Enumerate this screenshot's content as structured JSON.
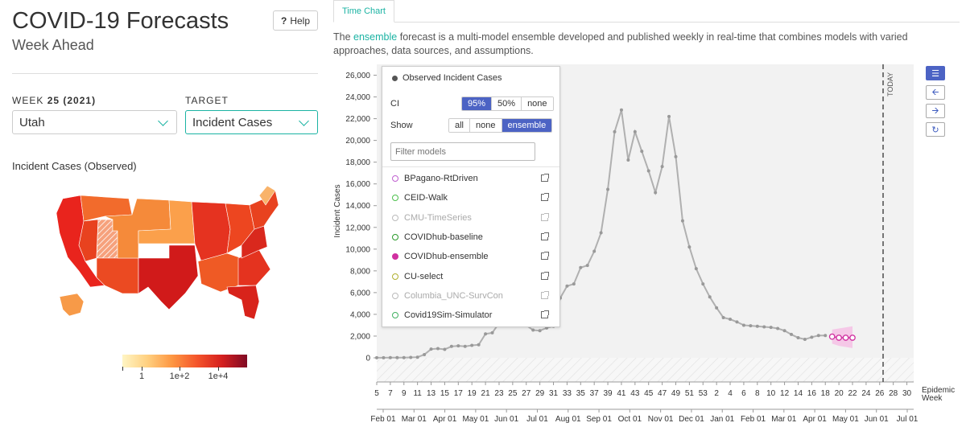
{
  "header": {
    "title": "COVID-19 Forecasts",
    "subtitle": "Week Ahead",
    "help_label": "Help",
    "help_icon_glyph": "?"
  },
  "selectors": {
    "week_label_prefix": "WEEK",
    "week_value": "25",
    "week_year": "(2021)",
    "region_value": "Utah",
    "target_label": "TARGET",
    "target_value": "Incident Cases"
  },
  "map": {
    "title": "Incident Cases (Observed)",
    "colorbar_labels": [
      "1",
      "1e+2",
      "1e+4"
    ],
    "colorbar_colors": [
      "#fff5c4",
      "#ffd080",
      "#fd9642",
      "#f4542b",
      "#d41f1f",
      "#7f0a24"
    ]
  },
  "tabs": [
    {
      "label": "Time Chart",
      "active": true
    }
  ],
  "description": {
    "prefix": "The",
    "link": "ensemble",
    "rest": "forecast is a multi-model ensemble developed and published weekly in real-time that combines models with varied approaches, data sources, and assumptions."
  },
  "legend": {
    "observed_label": "Observed Incident Cases",
    "ci_label": "CI",
    "ci_options": [
      "95%",
      "50%",
      "none"
    ],
    "ci_selected": "95%",
    "show_label": "Show",
    "show_options": [
      "all",
      "none",
      "ensemble"
    ],
    "show_selected": "ensemble",
    "filter_placeholder": "Filter models",
    "models": [
      {
        "name": "BPagano-RtDriven",
        "color": "#c060d0",
        "filled": false,
        "dim": false
      },
      {
        "name": "CEID-Walk",
        "color": "#4cc04c",
        "filled": false,
        "dim": false
      },
      {
        "name": "CMU-TimeSeries",
        "color": "#bbbbbb",
        "filled": false,
        "dim": true
      },
      {
        "name": "COVIDhub-baseline",
        "color": "#2a9a2a",
        "filled": false,
        "dim": false
      },
      {
        "name": "COVIDhub-ensemble",
        "color": "#d030a0",
        "filled": true,
        "dim": false
      },
      {
        "name": "CU-select",
        "color": "#b0b030",
        "filled": false,
        "dim": false
      },
      {
        "name": "Columbia_UNC-SurvCon",
        "color": "#bbbbbb",
        "filled": false,
        "dim": true
      },
      {
        "name": "Covid19Sim-Simulator",
        "color": "#40b060",
        "filled": false,
        "dim": false
      }
    ]
  },
  "controls": {
    "icons": [
      "menu-icon",
      "arrow-left-icon",
      "arrow-right-icon",
      "refresh-icon"
    ]
  },
  "chart_data": {
    "type": "line",
    "ylabel": "Incident Cases",
    "xlabel": "Epidemic Week",
    "ylim": [
      0,
      27000
    ],
    "y_ticks": [
      "0",
      "2,000",
      "4,000",
      "6,000",
      "8,000",
      "10,000",
      "12,000",
      "14,000",
      "16,000",
      "18,000",
      "20,000",
      "22,000",
      "24,000",
      "26,000"
    ],
    "week_ticks": [
      "5",
      "7",
      "9",
      "11",
      "13",
      "15",
      "17",
      "19",
      "21",
      "23",
      "25",
      "27",
      "29",
      "31",
      "33",
      "35",
      "37",
      "39",
      "41",
      "43",
      "45",
      "47",
      "49",
      "51",
      "53",
      "2",
      "4",
      "6",
      "8",
      "10",
      "12",
      "14",
      "16",
      "18",
      "20",
      "22",
      "24",
      "26",
      "28",
      "30"
    ],
    "month_ticks": [
      "Feb 01",
      "Mar 01",
      "Apr 01",
      "May 01",
      "Jun 01",
      "Jul 01",
      "Aug 01",
      "Sep 01",
      "Oct 01",
      "Nov 01",
      "Dec 01",
      "Jan 01",
      "Feb 01",
      "Mar 01",
      "Apr 01",
      "May 01",
      "Jun 01",
      "Jul 01"
    ],
    "today_label": "TODAY",
    "today_week_index": 74.5,
    "series": [
      {
        "name": "Observed Incident Cases",
        "color": "#999999",
        "values": [
          10,
          12,
          15,
          15,
          20,
          40,
          60,
          300,
          800,
          850,
          780,
          1050,
          1100,
          1050,
          1150,
          1200,
          2200,
          2300,
          3200,
          4200,
          3200,
          3050,
          3000,
          2550,
          2500,
          2750,
          2900,
          5500,
          6600,
          6800,
          8300,
          8500,
          9800,
          11500,
          15500,
          20800,
          22800,
          18200,
          20800,
          19000,
          17200,
          15200,
          17600,
          22200,
          18500,
          12600,
          10200,
          8200,
          6800,
          5600,
          4600,
          3700,
          3550,
          3300,
          3000,
          2950,
          2900,
          2850,
          2800,
          2700,
          2500,
          2150,
          1850,
          1700,
          1900,
          2050,
          2050
        ]
      },
      {
        "name": "COVIDhub-ensemble",
        "color": "#d030a0",
        "values": [
          1950,
          1850,
          1850,
          1850
        ],
        "ci95_upper": [
          2600,
          2700,
          2800,
          2900
        ],
        "ci95_lower": [
          1300,
          1100,
          1000,
          900
        ]
      }
    ]
  }
}
